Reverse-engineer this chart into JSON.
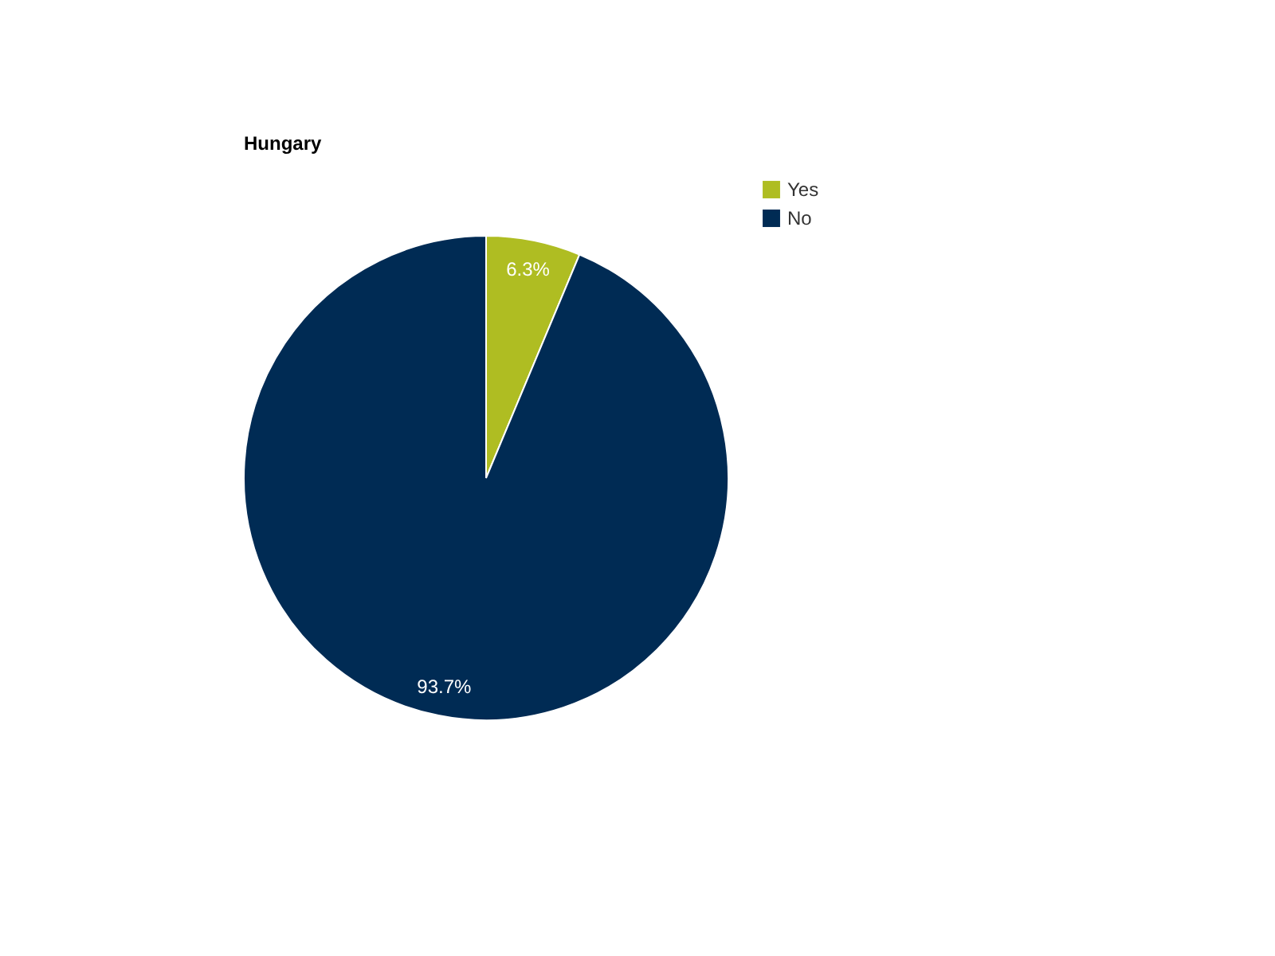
{
  "chart_data": {
    "type": "pie",
    "title": "Hungary",
    "categories": [
      "Yes",
      "No"
    ],
    "values": [
      6.3,
      93.7
    ],
    "colors": [
      "#afbd22",
      "#002b54"
    ],
    "value_labels": [
      "6.3%",
      "93.7%"
    ],
    "legend": "top right"
  }
}
